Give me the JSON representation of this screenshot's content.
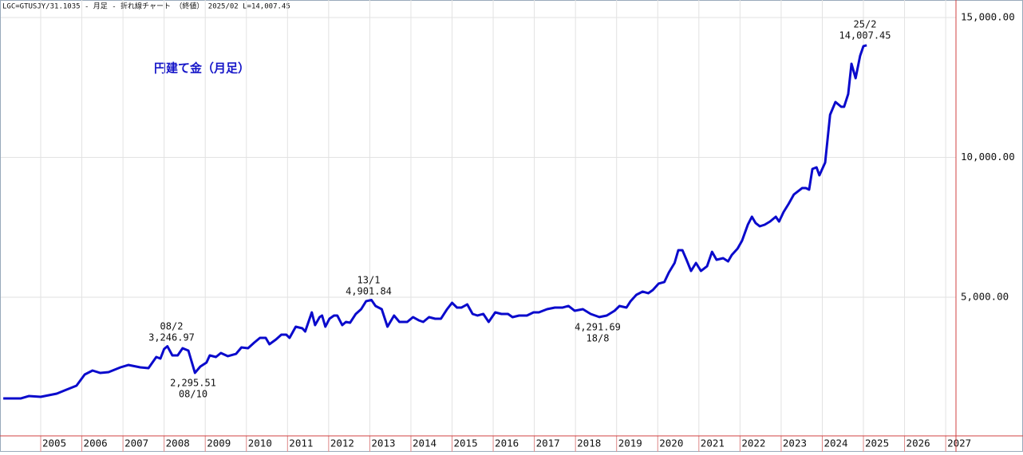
{
  "chart_data": {
    "type": "line",
    "subtitle": "LGC=GTUSJY/31.1035 - 月足 - 折れ線チャート （終値） 2025/02 L=14,007.45",
    "title": "円建て金（月足）",
    "color": "#0a0acc",
    "grid": true,
    "xlim": [
      2004.03,
      2027.25
    ],
    "xticks": [
      2005,
      2006,
      2007,
      2008,
      2009,
      2010,
      2011,
      2012,
      2013,
      2014,
      2015,
      2016,
      2017,
      2018,
      2019,
      2020,
      2021,
      2022,
      2023,
      2024,
      2025,
      2026,
      2027
    ],
    "ylim": [
      0,
      15627
    ],
    "yticks": [
      {
        "value": 5000,
        "label": "5,000.00"
      },
      {
        "value": 10000,
        "label": "10,000.00"
      },
      {
        "value": 15000,
        "label": "15,000.00"
      }
    ],
    "x": [
      2004.09,
      2004.52,
      2004.71,
      2005.0,
      2005.39,
      2005.58,
      2005.87,
      2006.07,
      2006.26,
      2006.45,
      2006.65,
      2006.94,
      2007.13,
      2007.42,
      2007.62,
      2007.81,
      2007.91,
      2008.0,
      2008.08,
      2008.2,
      2008.33,
      2008.45,
      2008.59,
      2008.75,
      2008.88,
      2009.03,
      2009.11,
      2009.26,
      2009.38,
      2009.55,
      2009.75,
      2009.88,
      2010.04,
      2010.19,
      2010.33,
      2010.47,
      2010.56,
      2010.72,
      2010.85,
      2010.97,
      2011.05,
      2011.2,
      2011.36,
      2011.43,
      2011.59,
      2011.67,
      2011.78,
      2011.84,
      2011.92,
      2012.02,
      2012.13,
      2012.21,
      2012.33,
      2012.42,
      2012.52,
      2012.66,
      2012.79,
      2012.91,
      2013.04,
      2013.14,
      2013.29,
      2013.43,
      2013.59,
      2013.72,
      2013.91,
      2014.05,
      2014.19,
      2014.3,
      2014.44,
      2014.59,
      2014.73,
      2014.88,
      2015.0,
      2015.12,
      2015.23,
      2015.37,
      2015.5,
      2015.62,
      2015.76,
      2015.89,
      2016.05,
      2016.2,
      2016.36,
      2016.47,
      2016.63,
      2016.82,
      2016.98,
      2017.11,
      2017.31,
      2017.5,
      2017.69,
      2017.83,
      2017.98,
      2018.18,
      2018.37,
      2018.58,
      2018.76,
      2018.95,
      2019.07,
      2019.24,
      2019.34,
      2019.48,
      2019.63,
      2019.77,
      2019.88,
      2020.02,
      2020.16,
      2020.27,
      2020.41,
      2020.5,
      2020.6,
      2020.7,
      2020.81,
      2020.93,
      2021.05,
      2021.2,
      2021.32,
      2021.43,
      2021.59,
      2021.71,
      2021.8,
      2021.94,
      2022.05,
      2022.19,
      2022.29,
      2022.38,
      2022.48,
      2022.6,
      2022.73,
      2022.87,
      2022.95,
      2023.06,
      2023.18,
      2023.31,
      2023.51,
      2023.6,
      2023.68,
      2023.76,
      2023.86,
      2023.93,
      2024.07,
      2024.19,
      2024.32,
      2024.46,
      2024.53,
      2024.63,
      2024.71,
      2024.81,
      2024.92,
      2025.0,
      2025.08
    ],
    "values": [
      1382,
      1382,
      1467,
      1439,
      1553,
      1667,
      1838,
      2236,
      2379,
      2293,
      2322,
      2493,
      2578,
      2493,
      2464,
      2863,
      2806,
      3148,
      3246.97,
      2920,
      2920,
      3177,
      3091,
      2295.51,
      2521,
      2664,
      2920,
      2863,
      3006,
      2892,
      2977,
      3205,
      3177,
      3376,
      3547,
      3547,
      3319,
      3490,
      3661,
      3661,
      3547,
      3946,
      3889,
      3775,
      4459,
      4003,
      4288,
      4345,
      3946,
      4231,
      4345,
      4345,
      4003,
      4117,
      4088,
      4402,
      4573,
      4858,
      4901.84,
      4687,
      4573,
      3946,
      4345,
      4117,
      4117,
      4288,
      4174,
      4117,
      4288,
      4231,
      4231,
      4573,
      4801,
      4630,
      4630,
      4744,
      4402,
      4345,
      4402,
      4117,
      4459,
      4402,
      4402,
      4288,
      4345,
      4345,
      4459,
      4459,
      4573,
      4630,
      4630,
      4687,
      4516,
      4573,
      4402,
      4291.69,
      4345,
      4516,
      4687,
      4630,
      4858,
      5086,
      5200,
      5143,
      5257,
      5485,
      5542,
      5883,
      6225,
      6681,
      6681,
      6339,
      5940,
      6225,
      5940,
      6111,
      6624,
      6339,
      6396,
      6282,
      6510,
      6738,
      7023,
      7593,
      7878,
      7650,
      7536,
      7593,
      7707,
      7878,
      7707,
      8049,
      8333,
      8675,
      8903,
      8903,
      8846,
      9587,
      9644,
      9359,
      9815,
      11524,
      11980,
      11809,
      11809,
      12265,
      13348,
      12834,
      13633,
      13975,
      14007.45
    ],
    "annotations": [
      [
        "08/2",
        "3,246.97"
      ],
      [
        "2,295.51",
        "08/10"
      ],
      [
        "13/1",
        "4,901.84"
      ],
      [
        "4,291.69",
        "18/8"
      ],
      [
        "25/2",
        "14,007.45"
      ]
    ]
  }
}
